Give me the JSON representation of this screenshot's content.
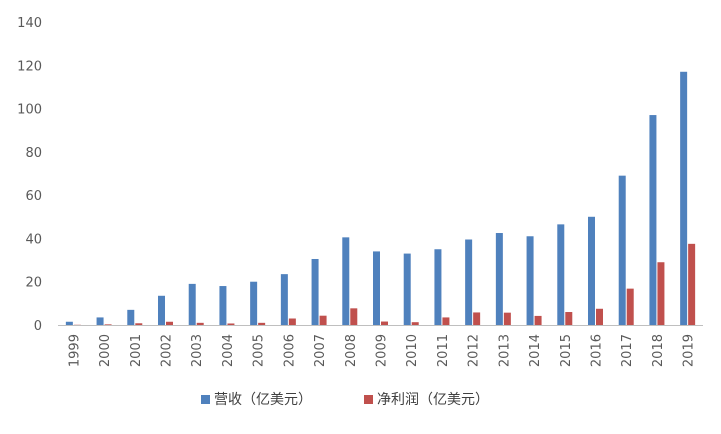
{
  "chart_data": {
    "type": "bar",
    "title": "",
    "xlabel": "",
    "ylabel": "",
    "ylim": [
      0,
      140
    ],
    "yticks": [
      0,
      20,
      40,
      60,
      80,
      100,
      120,
      140
    ],
    "grid": false,
    "legend_position": "bottom",
    "categories": [
      "1999",
      "2000",
      "2001",
      "2002",
      "2003",
      "2004",
      "2005",
      "2006",
      "2007",
      "2008",
      "2009",
      "2010",
      "2011",
      "2012",
      "2013",
      "2014",
      "2015",
      "2016",
      "2017",
      "2018",
      "2019"
    ],
    "series": [
      {
        "name": "营收（亿美元）",
        "color": "#4F81BD",
        "values": [
          1.5,
          3.5,
          7,
          13.5,
          19,
          18,
          20,
          23.5,
          30.5,
          40.5,
          34,
          33,
          35,
          39.5,
          42.5,
          41,
          46.5,
          50,
          69,
          97,
          117
        ]
      },
      {
        "name": "净利润（亿美元）",
        "color": "#C0504D",
        "values": [
          0.1,
          0.3,
          0.8,
          1.5,
          1,
          0.7,
          1,
          3,
          4.3,
          7.7,
          1.6,
          1.3,
          3.5,
          5.8,
          5.7,
          4.2,
          6,
          7.5,
          16.8,
          29,
          37.5
        ]
      }
    ]
  }
}
